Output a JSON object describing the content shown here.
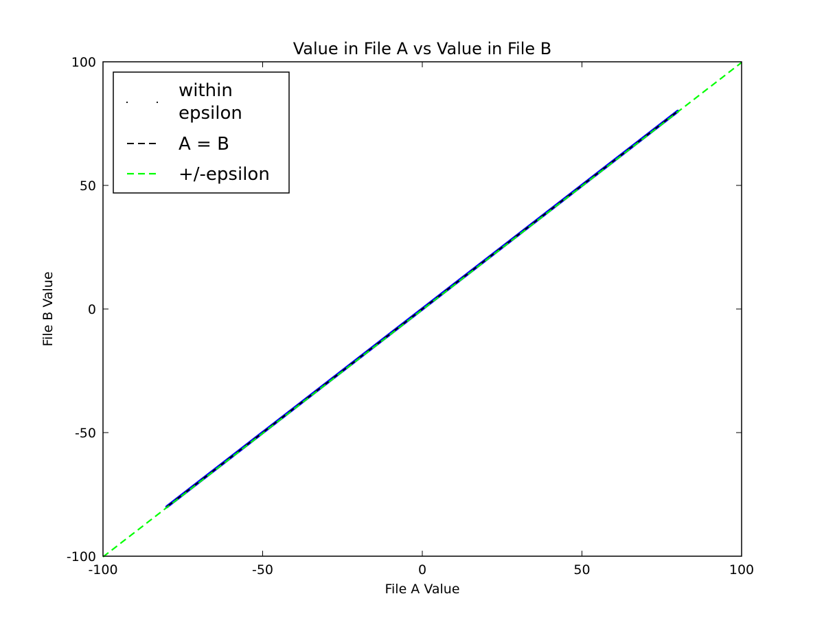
{
  "chart_data": {
    "type": "line",
    "title": "Value in File A vs Value in File B",
    "xlabel": "File A Value",
    "ylabel": "File B Value",
    "xlim": [
      -100,
      100
    ],
    "ylim": [
      -100,
      100
    ],
    "x_ticks": [
      -100,
      -50,
      0,
      50,
      100
    ],
    "y_ticks": [
      -100,
      -50,
      0,
      50,
      100
    ],
    "x_tick_labels": [
      "-100",
      "-50",
      "0",
      "50",
      "100"
    ],
    "y_tick_labels": [
      "-100",
      "-50",
      "0",
      "50",
      "100"
    ],
    "grid": false,
    "legend_position": "top-left",
    "series": [
      {
        "name": "within epsilon",
        "legend_lines": [
          "within",
          "epsilon"
        ],
        "style": "points",
        "color": "#0000ff",
        "x": [
          -80,
          80
        ],
        "y": [
          -80,
          80
        ]
      },
      {
        "name": "A = B",
        "style": "dashed",
        "color": "#000000",
        "x": [
          -80,
          80
        ],
        "y": [
          -80,
          80
        ]
      },
      {
        "name": "+/-epsilon",
        "style": "dashed",
        "color": "#00ff00",
        "x": [
          -100,
          100
        ],
        "y": [
          -100,
          100
        ]
      }
    ]
  }
}
